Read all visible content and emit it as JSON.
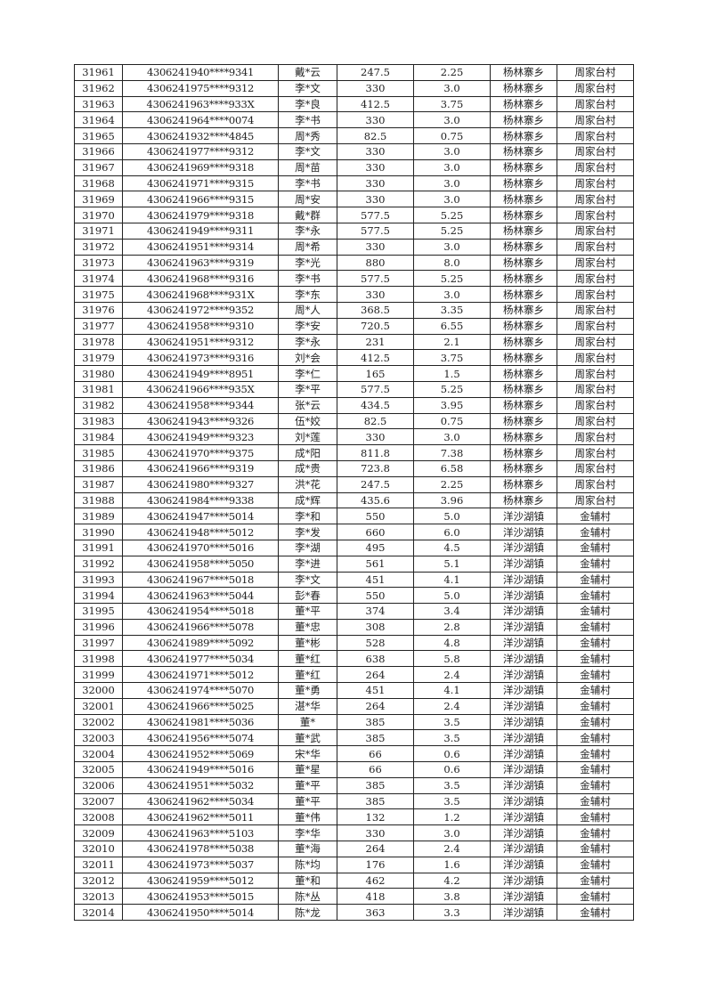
{
  "rows": [
    [
      "31961",
      "4306241940****9341",
      "戴*云",
      "247.5",
      "2.25",
      "杨林寨乡",
      "周家台村"
    ],
    [
      "31962",
      "4306241975****9312",
      "李*文",
      "330",
      "3.0",
      "杨林寨乡",
      "周家台村"
    ],
    [
      "31963",
      "4306241963****933X",
      "李*良",
      "412.5",
      "3.75",
      "杨林寨乡",
      "周家台村"
    ],
    [
      "31964",
      "4306241964****0074",
      "李*书",
      "330",
      "3.0",
      "杨林寨乡",
      "周家台村"
    ],
    [
      "31965",
      "4306241932****4845",
      "周*秀",
      "82.5",
      "0.75",
      "杨林寨乡",
      "周家台村"
    ],
    [
      "31966",
      "4306241977****9312",
      "李*文",
      "330",
      "3.0",
      "杨林寨乡",
      "周家台村"
    ],
    [
      "31967",
      "4306241969****9318",
      "周*苗",
      "330",
      "3.0",
      "杨林寨乡",
      "周家台村"
    ],
    [
      "31968",
      "4306241971****9315",
      "李*书",
      "330",
      "3.0",
      "杨林寨乡",
      "周家台村"
    ],
    [
      "31969",
      "4306241966****9315",
      "周*安",
      "330",
      "3.0",
      "杨林寨乡",
      "周家台村"
    ],
    [
      "31970",
      "4306241979****9318",
      "戴*群",
      "577.5",
      "5.25",
      "杨林寨乡",
      "周家台村"
    ],
    [
      "31971",
      "4306241949****9311",
      "李*永",
      "577.5",
      "5.25",
      "杨林寨乡",
      "周家台村"
    ],
    [
      "31972",
      "4306241951****9314",
      "周*希",
      "330",
      "3.0",
      "杨林寨乡",
      "周家台村"
    ],
    [
      "31973",
      "4306241963****9319",
      "李*光",
      "880",
      "8.0",
      "杨林寨乡",
      "周家台村"
    ],
    [
      "31974",
      "4306241968****9316",
      "李*书",
      "577.5",
      "5.25",
      "杨林寨乡",
      "周家台村"
    ],
    [
      "31975",
      "4306241968****931X",
      "李*东",
      "330",
      "3.0",
      "杨林寨乡",
      "周家台村"
    ],
    [
      "31976",
      "4306241972****9352",
      "周*人",
      "368.5",
      "3.35",
      "杨林寨乡",
      "周家台村"
    ],
    [
      "31977",
      "4306241958****9310",
      "李*安",
      "720.5",
      "6.55",
      "杨林寨乡",
      "周家台村"
    ],
    [
      "31978",
      "4306241951****9312",
      "李*永",
      "231",
      "2.1",
      "杨林寨乡",
      "周家台村"
    ],
    [
      "31979",
      "4306241973****9316",
      "刘*会",
      "412.5",
      "3.75",
      "杨林寨乡",
      "周家台村"
    ],
    [
      "31980",
      "4306241949****8951",
      "李*仁",
      "165",
      "1.5",
      "杨林寨乡",
      "周家台村"
    ],
    [
      "31981",
      "4306241966****935X",
      "李*平",
      "577.5",
      "5.25",
      "杨林寨乡",
      "周家台村"
    ],
    [
      "31982",
      "4306241958****9344",
      "张*云",
      "434.5",
      "3.95",
      "杨林寨乡",
      "周家台村"
    ],
    [
      "31983",
      "4306241943****9326",
      "伍*姣",
      "82.5",
      "0.75",
      "杨林寨乡",
      "周家台村"
    ],
    [
      "31984",
      "4306241949****9323",
      "刘*莲",
      "330",
      "3.0",
      "杨林寨乡",
      "周家台村"
    ],
    [
      "31985",
      "4306241970****9375",
      "成*阳",
      "811.8",
      "7.38",
      "杨林寨乡",
      "周家台村"
    ],
    [
      "31986",
      "4306241966****9319",
      "成*贵",
      "723.8",
      "6.58",
      "杨林寨乡",
      "周家台村"
    ],
    [
      "31987",
      "4306241980****9327",
      "洪*花",
      "247.5",
      "2.25",
      "杨林寨乡",
      "周家台村"
    ],
    [
      "31988",
      "4306241984****9338",
      "成*辉",
      "435.6",
      "3.96",
      "杨林寨乡",
      "周家台村"
    ],
    [
      "31989",
      "4306241947****5014",
      "李*和",
      "550",
      "5.0",
      "洋沙湖镇",
      "金辅村"
    ],
    [
      "31990",
      "4306241948****5012",
      "李*发",
      "660",
      "6.0",
      "洋沙湖镇",
      "金辅村"
    ],
    [
      "31991",
      "4306241970****5016",
      "李*湖",
      "495",
      "4.5",
      "洋沙湖镇",
      "金辅村"
    ],
    [
      "31992",
      "4306241958****5050",
      "李*进",
      "561",
      "5.1",
      "洋沙湖镇",
      "金辅村"
    ],
    [
      "31993",
      "4306241967****5018",
      "李*文",
      "451",
      "4.1",
      "洋沙湖镇",
      "金辅村"
    ],
    [
      "31994",
      "4306241963****5044",
      "彭*春",
      "550",
      "5.0",
      "洋沙湖镇",
      "金辅村"
    ],
    [
      "31995",
      "4306241954****5018",
      "董*平",
      "374",
      "3.4",
      "洋沙湖镇",
      "金辅村"
    ],
    [
      "31996",
      "4306241966****5078",
      "董*忠",
      "308",
      "2.8",
      "洋沙湖镇",
      "金辅村"
    ],
    [
      "31997",
      "4306241989****5092",
      "董*彬",
      "528",
      "4.8",
      "洋沙湖镇",
      "金辅村"
    ],
    [
      "31998",
      "4306241977****5034",
      "董*红",
      "638",
      "5.8",
      "洋沙湖镇",
      "金辅村"
    ],
    [
      "31999",
      "4306241971****5012",
      "董*红",
      "264",
      "2.4",
      "洋沙湖镇",
      "金辅村"
    ],
    [
      "32000",
      "4306241974****5070",
      "董*勇",
      "451",
      "4.1",
      "洋沙湖镇",
      "金辅村"
    ],
    [
      "32001",
      "4306241966****5025",
      "湛*华",
      "264",
      "2.4",
      "洋沙湖镇",
      "金辅村"
    ],
    [
      "32002",
      "4306241981****5036",
      "董*",
      "385",
      "3.5",
      "洋沙湖镇",
      "金辅村"
    ],
    [
      "32003",
      "4306241956****5074",
      "董*武",
      "385",
      "3.5",
      "洋沙湖镇",
      "金辅村"
    ],
    [
      "32004",
      "4306241952****5069",
      "宋*华",
      "66",
      "0.6",
      "洋沙湖镇",
      "金辅村"
    ],
    [
      "32005",
      "4306241949****5016",
      "董*星",
      "66",
      "0.6",
      "洋沙湖镇",
      "金辅村"
    ],
    [
      "32006",
      "4306241951****5032",
      "董*平",
      "385",
      "3.5",
      "洋沙湖镇",
      "金辅村"
    ],
    [
      "32007",
      "4306241962****5034",
      "董*平",
      "385",
      "3.5",
      "洋沙湖镇",
      "金辅村"
    ],
    [
      "32008",
      "4306241962****5011",
      "董*伟",
      "132",
      "1.2",
      "洋沙湖镇",
      "金辅村"
    ],
    [
      "32009",
      "4306241963****5103",
      "李*华",
      "330",
      "3.0",
      "洋沙湖镇",
      "金辅村"
    ],
    [
      "32010",
      "4306241978****5038",
      "董*海",
      "264",
      "2.4",
      "洋沙湖镇",
      "金辅村"
    ],
    [
      "32011",
      "4306241973****5037",
      "陈*均",
      "176",
      "1.6",
      "洋沙湖镇",
      "金辅村"
    ],
    [
      "32012",
      "4306241959****5012",
      "董*和",
      "462",
      "4.2",
      "洋沙湖镇",
      "金辅村"
    ],
    [
      "32013",
      "4306241953****5015",
      "陈*丛",
      "418",
      "3.8",
      "洋沙湖镇",
      "金辅村"
    ],
    [
      "32014",
      "4306241950****5014",
      "陈*龙",
      "363",
      "3.3",
      "洋沙湖镇",
      "金辅村"
    ]
  ]
}
